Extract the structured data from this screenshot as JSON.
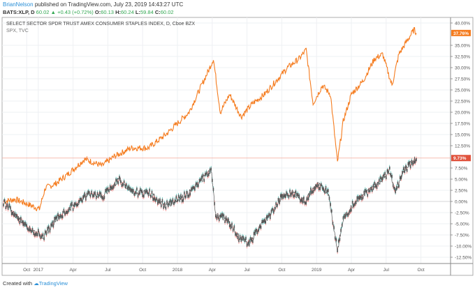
{
  "header": {
    "author": "BrianNelson",
    "published": "published on TradingView.com, July 23, 2019 14:43:27 UTC",
    "symbol": "BATS:XLP, D",
    "last": "60.02",
    "change": "+0.43 (+0.72%)",
    "o_label": "O:",
    "o": "60.13",
    "h_label": "H:",
    "h": "60.24",
    "l_label": "L:",
    "l": "59.84",
    "c_label": "C:",
    "c": "60.02"
  },
  "legend": {
    "main": "SELECT SECTOR SPDR TRUST AMEX CONSUMER STAPLES INDEX, D, Cboe BZX",
    "compare": "SPX, TVC"
  },
  "footer": {
    "created": "Created with",
    "brand": "TradingView"
  },
  "chart_data": {
    "type": "line",
    "yunit": "%",
    "ylim": [
      -13.5,
      41
    ],
    "yticks": [
      "40.00%",
      "35.00%",
      "32.50%",
      "30.00%",
      "27.50%",
      "25.00%",
      "22.50%",
      "20.00%",
      "17.50%",
      "15.00%",
      "12.50%",
      "7.50%",
      "5.00%",
      "2.50%",
      "0.00%",
      "-2.50%",
      "-5.00%",
      "-7.50%",
      "-10.00%",
      "-12.50%"
    ],
    "ytick_values": [
      40,
      35,
      32.5,
      30,
      27.5,
      25,
      22.5,
      20,
      17.5,
      15,
      12.5,
      7.5,
      5,
      2.5,
      0,
      -2.5,
      -5,
      -7.5,
      -10,
      -12.5
    ],
    "xticks": [
      "Oct",
      "2017",
      "Apr",
      "Jul",
      "Oct",
      "2018",
      "Apr",
      "Jul",
      "Oct",
      "2019",
      "Apr",
      "Jul",
      "Oct"
    ],
    "xtick_months": [
      2,
      3,
      6,
      9,
      12,
      15,
      18,
      21,
      24,
      27,
      30,
      33,
      36
    ],
    "x_unit": "months since 2016-08-01 (Oct 2016 = 2)",
    "series": [
      {
        "name": "SPX, TVC",
        "color": "#f57c1f",
        "last_label": "37.76%",
        "points": [
          [
            0,
            0
          ],
          [
            1,
            0.5
          ],
          [
            2,
            -0.5
          ],
          [
            3.1,
            -1.7
          ],
          [
            3.6,
            3
          ],
          [
            4.5,
            4
          ],
          [
            5.5,
            6
          ],
          [
            7,
            9.5
          ],
          [
            8.5,
            8
          ],
          [
            9.5,
            10
          ],
          [
            11,
            12
          ],
          [
            12.5,
            12
          ],
          [
            14,
            15
          ],
          [
            16,
            20
          ],
          [
            17.8,
            30
          ],
          [
            18.1,
            32
          ],
          [
            18.7,
            20
          ],
          [
            19.5,
            24
          ],
          [
            20.5,
            19
          ],
          [
            21.5,
            22
          ],
          [
            22.5,
            24
          ],
          [
            23.5,
            27
          ],
          [
            24.5,
            30
          ],
          [
            25.5,
            32
          ],
          [
            26.1,
            34
          ],
          [
            26.7,
            22
          ],
          [
            27.5,
            26
          ],
          [
            28.2,
            24
          ],
          [
            28.8,
            8.7
          ],
          [
            29.3,
            18
          ],
          [
            30,
            24
          ],
          [
            31,
            27
          ],
          [
            32,
            32
          ],
          [
            32.7,
            33
          ],
          [
            33.5,
            26
          ],
          [
            34.1,
            33
          ],
          [
            34.8,
            36
          ],
          [
            35.4,
            38.5
          ],
          [
            35.6,
            37.76
          ]
        ]
      },
      {
        "name": "BATS:XLP, D",
        "color": "#555555",
        "last_label": "9.73%",
        "points": [
          [
            0,
            0
          ],
          [
            1,
            -3
          ],
          [
            2.2,
            -6
          ],
          [
            3.5,
            -8
          ],
          [
            4.5,
            -4
          ],
          [
            5.5,
            -2
          ],
          [
            6.5,
            0
          ],
          [
            7.5,
            2
          ],
          [
            8.5,
            1
          ],
          [
            10,
            5
          ],
          [
            11,
            2
          ],
          [
            12.5,
            2
          ],
          [
            14,
            -1
          ],
          [
            15.5,
            1
          ],
          [
            16.5,
            3
          ],
          [
            17.9,
            7.2
          ],
          [
            18.3,
            -3
          ],
          [
            19.3,
            -4
          ],
          [
            20.3,
            -8
          ],
          [
            21.2,
            -9.5
          ],
          [
            22,
            -6
          ],
          [
            23,
            -3
          ],
          [
            24,
            1
          ],
          [
            25,
            2
          ],
          [
            26,
            0
          ],
          [
            27,
            4
          ],
          [
            28,
            2
          ],
          [
            28.8,
            -11
          ],
          [
            29.3,
            -4
          ],
          [
            30.3,
            0
          ],
          [
            31.3,
            2
          ],
          [
            32.3,
            4
          ],
          [
            33.3,
            7
          ],
          [
            33.8,
            2
          ],
          [
            34.5,
            7
          ],
          [
            35.3,
            9
          ],
          [
            35.6,
            9.73
          ]
        ]
      }
    ]
  }
}
